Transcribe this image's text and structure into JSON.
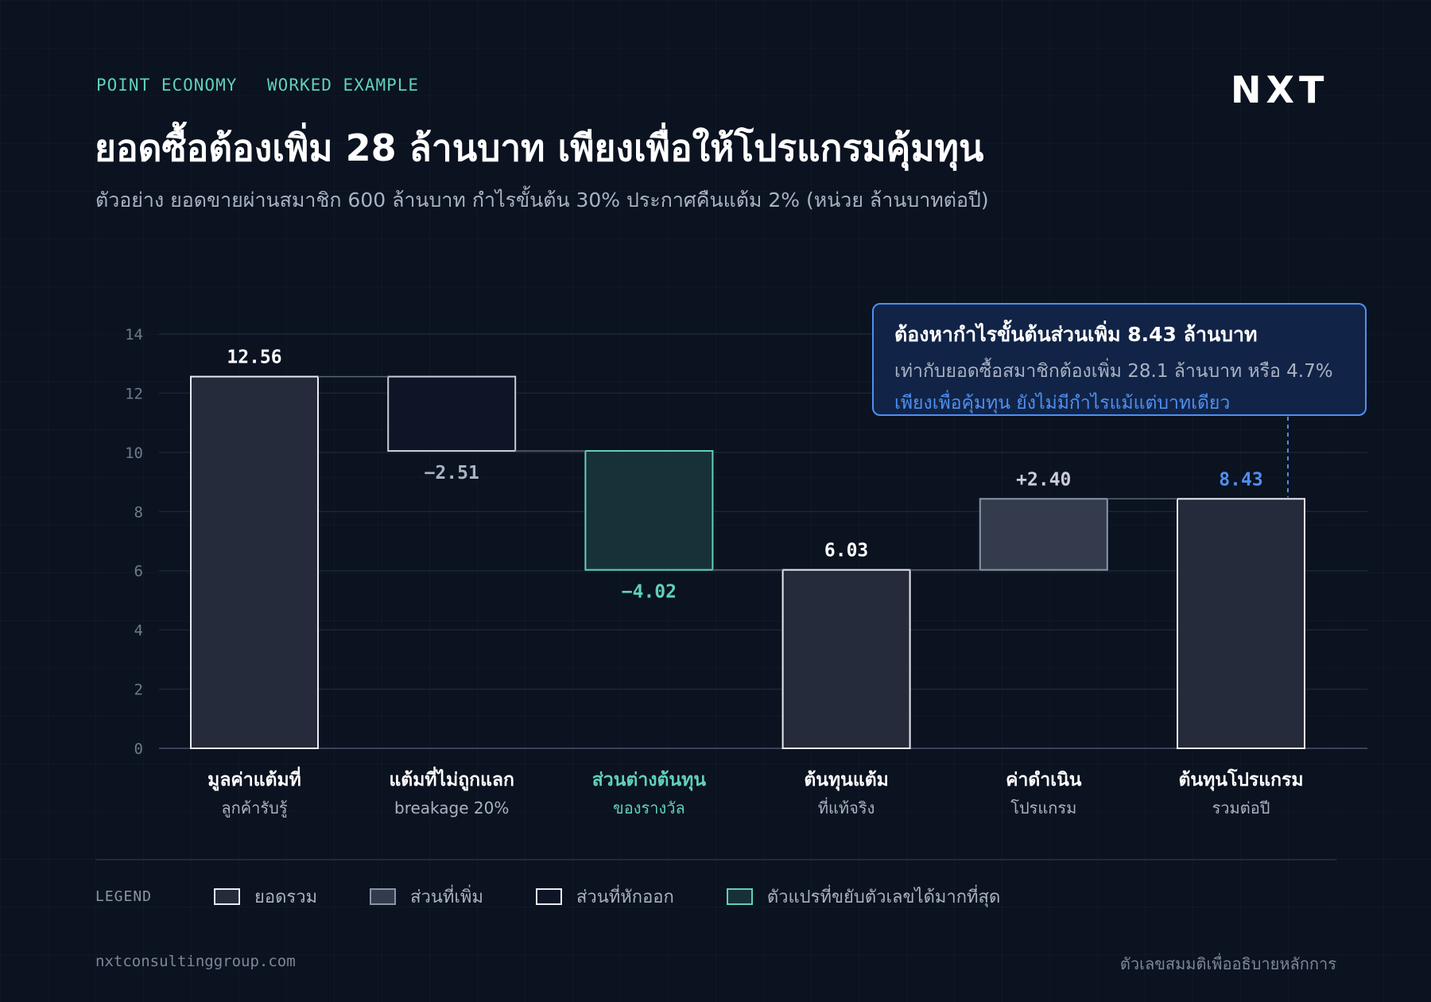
{
  "header": {
    "eyebrow": [
      "POINT ECONOMY",
      "WORKED EXAMPLE"
    ],
    "logo": "NXT",
    "title": "ยอดซื้อต้องเพิ่ม 28 ล้านบาท เพียงเพื่อให้โปรแกรมคุ้มทุน",
    "subtitle": "ตัวอย่าง ยอดขายผ่านสมาชิก 600 ล้านบาท กำไรขั้นต้น 30% ประกาศคืนแต้ม 2% (หน่วย ล้านบาทต่อปี)"
  },
  "callout": {
    "title": "ต้องหากำไรขั้นต้นส่วนเพิ่ม 8.43 ล้านบาท",
    "line": "เท่ากับยอดซื้อสมาชิกต้องเพิ่ม 28.1 ล้านบาท หรือ 4.7%",
    "accent": "เพียงเพื่อคุ้มทุน ยังไม่มีกำไรแม้แต่บาทเดียว"
  },
  "chart_data": {
    "type": "bar",
    "subtype": "waterfall",
    "ylim": [
      0,
      14
    ],
    "yticks": [
      "0",
      "2",
      "4",
      "6",
      "8",
      "10",
      "12",
      "14"
    ],
    "grid": true,
    "categories": [
      {
        "label": "มูลค่าแต้มที่",
        "sublabel": "ลูกค้ารับรู้",
        "kind": "total",
        "start": 0,
        "end": 12.56,
        "value_label": "12.56"
      },
      {
        "label": "แต้มที่ไม่ถูกแลก",
        "sublabel": "breakage 20%",
        "kind": "decrease",
        "start": 12.56,
        "end": 10.05,
        "value_label": "−2.51"
      },
      {
        "label": "ส่วนต่างต้นทุน",
        "sublabel": "ของรางวัล",
        "kind": "highlight",
        "start": 10.05,
        "end": 6.03,
        "value_label": "−4.02"
      },
      {
        "label": "ต้นทุนแต้ม",
        "sublabel": "ที่แท้จริง",
        "kind": "total",
        "start": 0,
        "end": 6.03,
        "value_label": "6.03"
      },
      {
        "label": "ค่าดำเนิน",
        "sublabel": "โปรแกรม",
        "kind": "increase",
        "start": 6.03,
        "end": 8.43,
        "value_label": "+2.40"
      },
      {
        "label": "ต้นทุนโปรแกรม",
        "sublabel": "รวมต่อปี",
        "kind": "total",
        "start": 0,
        "end": 8.43,
        "value_label": "8.43"
      }
    ],
    "colors": {
      "total": "#262b3b",
      "decrease": "#0e1526",
      "increase": "#343b4d",
      "highlight": "#173139",
      "highlight_stroke": "#5fd1b8",
      "accent": "#4f8ff0",
      "stroke": "#e8ecf3"
    }
  },
  "legend": {
    "label": "LEGEND",
    "items": [
      {
        "text": "ยอดรวม",
        "fill": "#262b3b",
        "stroke": "#e8ecf3"
      },
      {
        "text": "ส่วนที่เพิ่ม",
        "fill": "#343b4d",
        "stroke": "#8b95a7"
      },
      {
        "text": "ส่วนที่หักออก",
        "fill": "#0e1526",
        "stroke": "#e8ecf3"
      },
      {
        "text": "ตัวแปรที่ขยับตัวเลขได้มากที่สุด",
        "fill": "#173139",
        "stroke": "#5fd1b8"
      }
    ]
  },
  "footer": {
    "left": "nxtconsultinggroup.com",
    "right": "ตัวเลขสมมติเพื่ออธิบายหลักการ"
  }
}
